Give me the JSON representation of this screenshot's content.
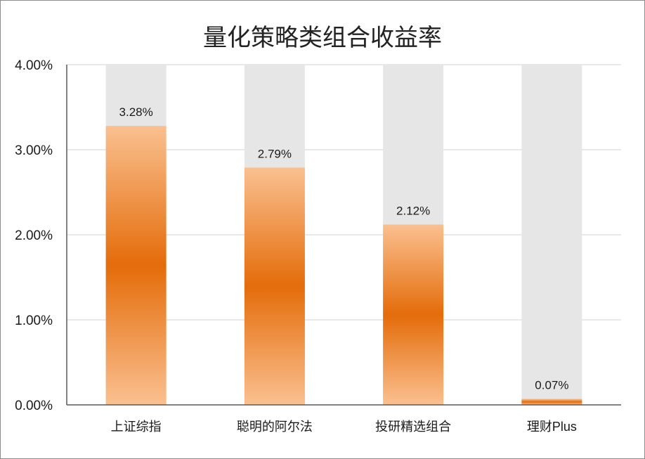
{
  "chart_data": {
    "type": "bar",
    "title": "量化策略类组合收益率",
    "categories": [
      "上证综指",
      "聪明的阿尔法",
      "投研精选组合",
      "理财Plus"
    ],
    "series": [
      {
        "values": [
          3.28,
          2.79,
          2.12,
          0.07
        ],
        "labels": [
          "3.28%",
          "2.79%",
          "2.12%",
          "0.07%"
        ]
      }
    ],
    "ylim": [
      0,
      4
    ],
    "yticks": [
      0,
      1,
      2,
      3,
      4
    ],
    "ytick_labels": [
      "0.00%",
      "1.00%",
      "2.00%",
      "3.00%",
      "4.00%"
    ],
    "grid": true,
    "background_bar": true,
    "colors": {
      "bar_dark": "#e46c0a",
      "bar_light": "#fac090",
      "background_bar": "#e6e6e6",
      "grid": "#d0d0d0",
      "axis": "#595959"
    }
  }
}
